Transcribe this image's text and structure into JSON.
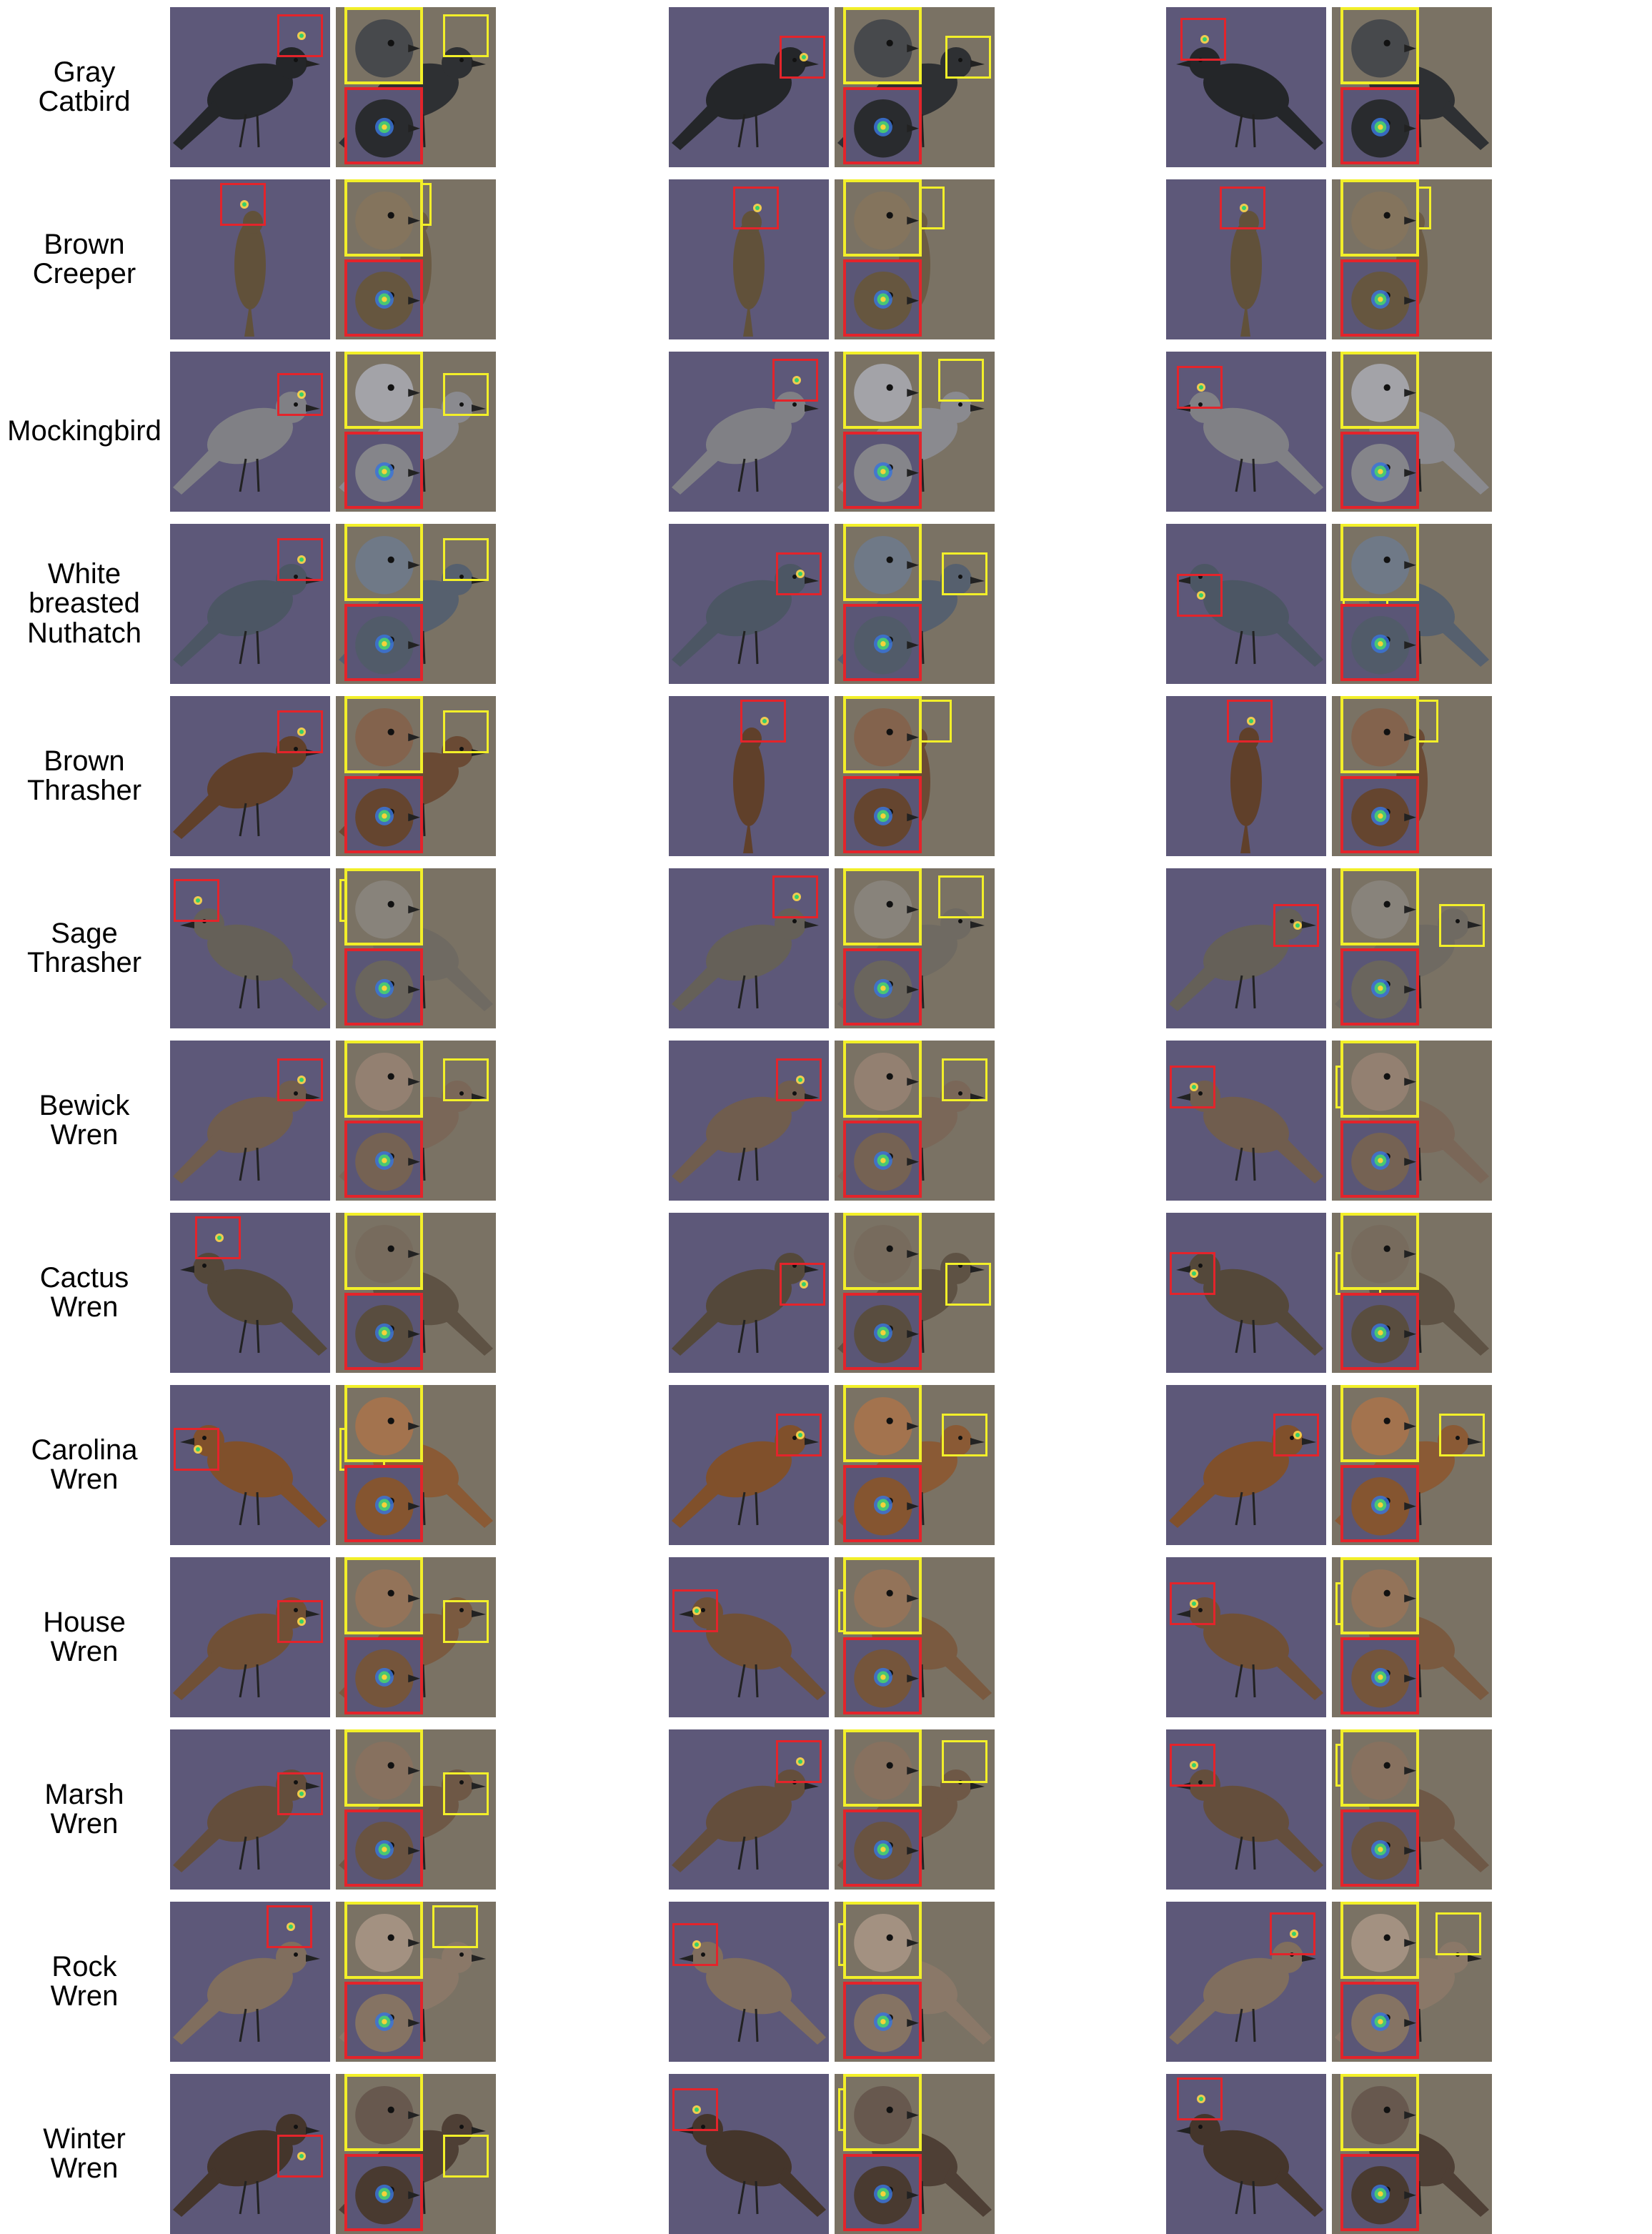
{
  "colors": {
    "original_background": "#5d5879",
    "reconstruction_background": "#7a7264",
    "prototype_box": "#e3242b",
    "patch_box": "#f2ef29"
  },
  "rows": [
    {
      "label": "Gray\nCatbird",
      "tone": "#2e3033"
    },
    {
      "label": "Brown\nCreeper",
      "tone": "#6b5b44"
    },
    {
      "label": "Mockingbird",
      "tone": "#8a8a8f"
    },
    {
      "label": "White\nbreasted\nNuthatch",
      "tone": "#56606e"
    },
    {
      "label": "Brown\nThrasher",
      "tone": "#6a4a34"
    },
    {
      "label": "Sage\nThrasher",
      "tone": "#6f6a62"
    },
    {
      "label": "Bewick\nWren",
      "tone": "#7a6758"
    },
    {
      "label": "Cactus\nWren",
      "tone": "#5e5244"
    },
    {
      "label": "Carolina\nWren",
      "tone": "#8a5a35"
    },
    {
      "label": "House\nWren",
      "tone": "#7a5a40"
    },
    {
      "label": "Marsh\nWren",
      "tone": "#6e5846"
    },
    {
      "label": "Rock\nWren",
      "tone": "#8a7868"
    },
    {
      "label": "Winter\nWren",
      "tone": "#4e3f35"
    }
  ]
}
